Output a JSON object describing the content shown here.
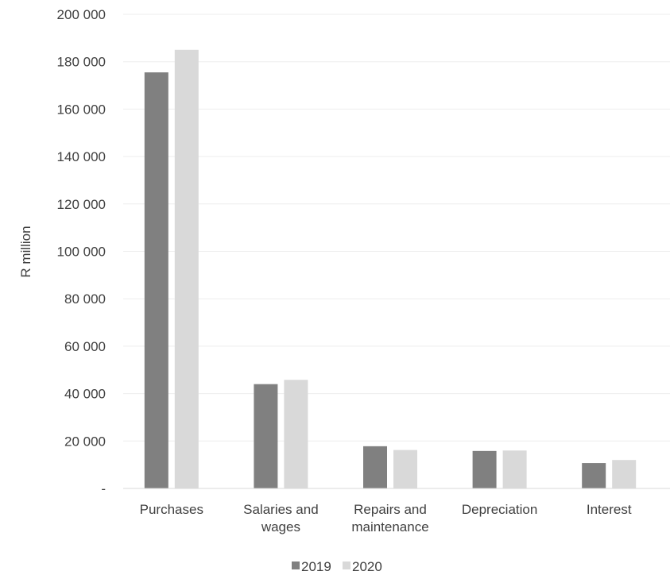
{
  "chart_data": {
    "type": "bar",
    "categories": [
      [
        "Purchases"
      ],
      [
        "Salaries and",
        "wages"
      ],
      [
        "Repairs and",
        "maintenance"
      ],
      [
        "Depreciation"
      ],
      [
        "Interest"
      ]
    ],
    "series": [
      {
        "name": "2019",
        "color": "#808080",
        "values": [
          175500,
          44000,
          17800,
          15800,
          10700
        ]
      },
      {
        "name": "2020",
        "color": "#d9d9d9",
        "values": [
          185000,
          45800,
          16200,
          16000,
          12000
        ]
      }
    ],
    "ylabel": "R million",
    "ylim": [
      0,
      200000
    ],
    "ticks": [
      {
        "value": 0,
        "label": "-"
      },
      {
        "value": 20000,
        "label": "20 000"
      },
      {
        "value": 40000,
        "label": "40 000"
      },
      {
        "value": 60000,
        "label": "60 000"
      },
      {
        "value": 80000,
        "label": "80 000"
      },
      {
        "value": 100000,
        "label": "100 000"
      },
      {
        "value": 120000,
        "label": "120 000"
      },
      {
        "value": 140000,
        "label": "140 000"
      },
      {
        "value": 160000,
        "label": "160 000"
      },
      {
        "value": 180000,
        "label": "180 000"
      },
      {
        "value": 200000,
        "label": "200 000"
      }
    ],
    "grid": true,
    "gridColor": "#eeeeee",
    "axisColor": "#d9d9d9",
    "legend": "bottom"
  }
}
